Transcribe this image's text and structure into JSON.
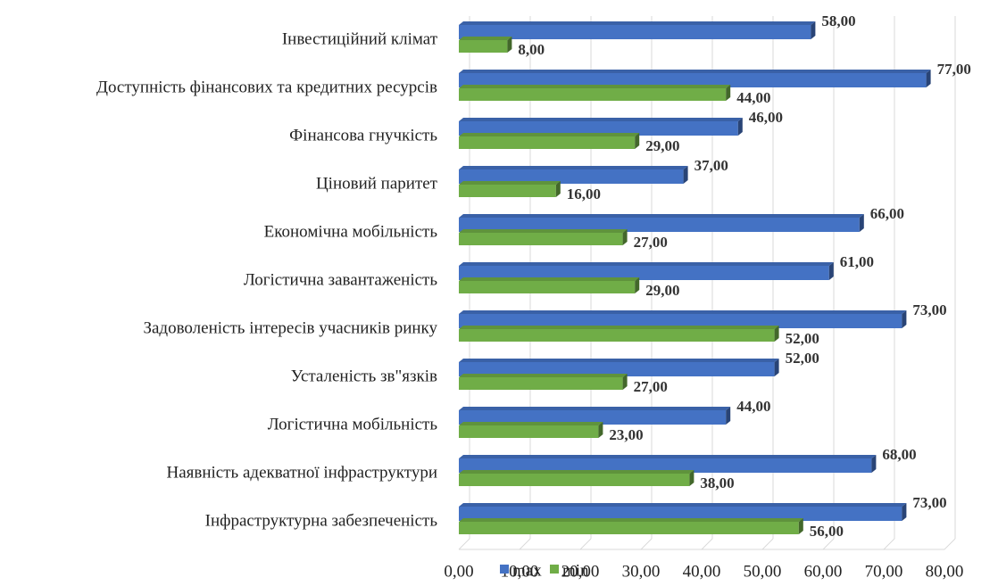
{
  "chart_data": {
    "type": "bar",
    "orientation": "horizontal",
    "categories": [
      "Інвестиційний клімат",
      "Доступність фінансових та кредитних ресурсів",
      "Фінансова гнучкість",
      "Ціновий паритет",
      "Економічна мобільність",
      "Логістична завантаженість",
      "Задоволеність інтересів учасників ринку",
      "Усталеність зв\"язків",
      "Логістична мобільність",
      "Наявність адекватної інфраструктури",
      "Інфраструктурна забезпеченість"
    ],
    "series": [
      {
        "name": "max",
        "color": "#4472c4",
        "values": [
          58,
          77,
          46,
          37,
          66,
          61,
          73,
          52,
          44,
          68,
          73
        ],
        "value_labels": [
          "58,00",
          "77,00",
          "46,00",
          "37,00",
          "66,00",
          "61,00",
          "73,00",
          "52,00",
          "44,00",
          "68,00",
          "73,00"
        ]
      },
      {
        "name": "min",
        "color": "#70ad47",
        "values": [
          8,
          44,
          29,
          16,
          27,
          29,
          52,
          27,
          23,
          38,
          56
        ],
        "value_labels": [
          "8,00",
          "44,00",
          "29,00",
          "16,00",
          "27,00",
          "29,00",
          "52,00",
          "27,00",
          "23,00",
          "38,00",
          "56,00"
        ]
      }
    ],
    "xlim": [
      0,
      80
    ],
    "xticks": [
      {
        "value": 0,
        "label": "0,00"
      },
      {
        "value": 10,
        "label": "10,00"
      },
      {
        "value": 20,
        "label": "20,00"
      },
      {
        "value": 30,
        "label": "30,00"
      },
      {
        "value": 40,
        "label": "40,00"
      },
      {
        "value": 50,
        "label": "50,00"
      },
      {
        "value": 60,
        "label": "60,00"
      },
      {
        "value": 70,
        "label": "70,00"
      },
      {
        "value": 80,
        "label": "80,00"
      }
    ],
    "grid": true,
    "legend": "bottom"
  }
}
